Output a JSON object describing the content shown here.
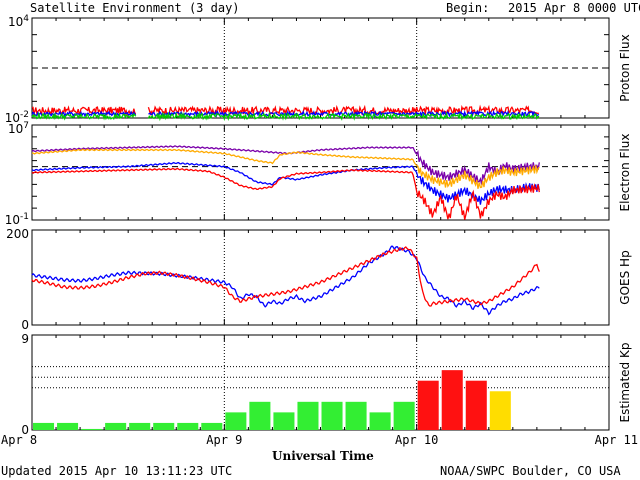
{
  "header": {
    "title": "Satellite Environment (3 day)",
    "begin_label": "Begin:",
    "begin_value": "2015 Apr 8 0000 UTC"
  },
  "footer": {
    "updated": "Updated 2015 Apr 10 13:11:23 UTC",
    "credit": "NOAA/SWPC Boulder, CO USA",
    "xlabel": "Universal Time"
  },
  "colors": {
    "red": "#ff0000",
    "blue": "#0000ff",
    "green": "#00cc00",
    "purple": "#7a00aa",
    "orange": "#ffaa00",
    "kp_green": "#33ee33",
    "kp_red": "#ff1111",
    "kp_yellow": "#ffdd00"
  },
  "chart_data": [
    {
      "type": "line",
      "ylabel": "Proton Flux",
      "ytick_labels": [
        "10^4",
        "10^-2"
      ],
      "scale": "log",
      "ylim": [
        -2,
        4
      ],
      "threshold": 1,
      "gap_hours": [
        13.0,
        14.5
      ],
      "series": [
        {
          "color": "red",
          "mean_log": -1.55,
          "jitter": 0.22
        },
        {
          "color": "blue",
          "mean_log": -1.75,
          "jitter": 0.12
        },
        {
          "color": "green",
          "mean_log": -1.9,
          "jitter": 0.15
        }
      ]
    },
    {
      "type": "line",
      "ylabel": "Electron Flux",
      "ytick_labels": [
        "10^7",
        "10^-1"
      ],
      "scale": "log",
      "ylim": [
        -1,
        7
      ],
      "threshold": 3.5,
      "series": [
        {
          "color": "purple",
          "points": [
            [
              0,
              4.8
            ],
            [
              6,
              5.0
            ],
            [
              12,
              5.1
            ],
            [
              18,
              5.2
            ],
            [
              24,
              5.0
            ],
            [
              28,
              4.8
            ],
            [
              32,
              4.6
            ],
            [
              36,
              4.9
            ],
            [
              42,
              5.1
            ],
            [
              47.5,
              5.1
            ],
            [
              48.5,
              4.0
            ],
            [
              50,
              3.0
            ],
            [
              52,
              2.6
            ],
            [
              54,
              3.2
            ],
            [
              56,
              2.2
            ],
            [
              57,
              3.5
            ],
            [
              58,
              3.0
            ],
            [
              59,
              3.6
            ],
            [
              60,
              3.3
            ],
            [
              62,
              3.5
            ],
            [
              63.3,
              3.5
            ]
          ]
        },
        {
          "color": "orange",
          "points": [
            [
              0,
              4.6
            ],
            [
              6,
              4.9
            ],
            [
              12,
              4.9
            ],
            [
              18,
              4.9
            ],
            [
              24,
              4.6
            ],
            [
              26,
              4.3
            ],
            [
              28,
              4.0
            ],
            [
              30,
              3.8
            ],
            [
              31,
              4.5
            ],
            [
              33,
              4.7
            ],
            [
              36,
              4.5
            ],
            [
              40,
              4.3
            ],
            [
              44,
              4.2
            ],
            [
              47.5,
              4.1
            ],
            [
              48.5,
              3.0
            ],
            [
              50,
              2.4
            ],
            [
              52,
              2.0
            ],
            [
              54,
              2.8
            ],
            [
              56,
              1.8
            ],
            [
              57,
              2.6
            ],
            [
              58,
              3.0
            ],
            [
              59,
              3.2
            ],
            [
              60,
              3.0
            ],
            [
              62,
              3.2
            ],
            [
              63.3,
              3.3
            ]
          ]
        },
        {
          "color": "blue",
          "points": [
            [
              0,
              3.2
            ],
            [
              6,
              3.4
            ],
            [
              12,
              3.5
            ],
            [
              18,
              3.8
            ],
            [
              24,
              3.5
            ],
            [
              26,
              3.0
            ],
            [
              28,
              2.2
            ],
            [
              30,
              2.0
            ],
            [
              31,
              2.6
            ],
            [
              33,
              2.4
            ],
            [
              36,
              2.8
            ],
            [
              40,
              3.2
            ],
            [
              44,
              3.4
            ],
            [
              47.5,
              3.5
            ],
            [
              48.5,
              2.4
            ],
            [
              50,
              1.5
            ],
            [
              52,
              0.8
            ],
            [
              54,
              1.5
            ],
            [
              56,
              0.6
            ],
            [
              57,
              1.2
            ],
            [
              58,
              1.6
            ],
            [
              60,
              1.5
            ],
            [
              62,
              1.8
            ],
            [
              63.3,
              1.7
            ]
          ]
        },
        {
          "color": "red",
          "points": [
            [
              0,
              3.0
            ],
            [
              6,
              3.1
            ],
            [
              12,
              3.2
            ],
            [
              18,
              3.3
            ],
            [
              22,
              3.1
            ],
            [
              24,
              2.6
            ],
            [
              26,
              1.9
            ],
            [
              28,
              1.6
            ],
            [
              30,
              1.8
            ],
            [
              31,
              2.5
            ],
            [
              33,
              2.9
            ],
            [
              36,
              3.0
            ],
            [
              40,
              3.2
            ],
            [
              44,
              3.1
            ],
            [
              47.5,
              3.0
            ],
            [
              48,
              1.4
            ],
            [
              49,
              0.6
            ],
            [
              50,
              -0.6
            ],
            [
              51,
              0.9
            ],
            [
              52,
              -0.9
            ],
            [
              53,
              1.1
            ],
            [
              54,
              -0.8
            ],
            [
              55,
              1.3
            ],
            [
              56,
              -0.7
            ],
            [
              57,
              0.6
            ],
            [
              58,
              1.2
            ],
            [
              59,
              0.9
            ],
            [
              60,
              1.5
            ],
            [
              62,
              1.6
            ],
            [
              63.3,
              1.7
            ]
          ]
        }
      ]
    },
    {
      "type": "line",
      "ylabel": "GOES Hp",
      "ytick_labels": [
        "200",
        "0"
      ],
      "ylim": [
        0,
        200
      ],
      "series": [
        {
          "color": "blue",
          "points": [
            [
              0,
              105
            ],
            [
              2,
              100
            ],
            [
              4,
              95
            ],
            [
              6,
              93
            ],
            [
              8,
              98
            ],
            [
              10,
              105
            ],
            [
              12,
              110
            ],
            [
              16,
              108
            ],
            [
              20,
              100
            ],
            [
              22,
              95
            ],
            [
              24,
              90
            ],
            [
              25,
              80
            ],
            [
              26,
              55
            ],
            [
              27,
              65
            ],
            [
              28,
              60
            ],
            [
              29,
              40
            ],
            [
              30,
              50
            ],
            [
              31,
              45
            ],
            [
              32,
              55
            ],
            [
              33,
              60
            ],
            [
              34,
              50
            ],
            [
              36,
              60
            ],
            [
              38,
              80
            ],
            [
              40,
              100
            ],
            [
              42,
              130
            ],
            [
              44,
              150
            ],
            [
              45,
              165
            ],
            [
              46,
              160
            ],
            [
              47,
              155
            ],
            [
              48,
              140
            ],
            [
              49,
              100
            ],
            [
              50,
              80
            ],
            [
              51,
              60
            ],
            [
              52,
              55
            ],
            [
              53,
              40
            ],
            [
              54,
              50
            ],
            [
              55,
              35
            ],
            [
              56,
              45
            ],
            [
              57,
              25
            ],
            [
              58,
              40
            ],
            [
              59,
              50
            ],
            [
              60,
              55
            ],
            [
              61,
              65
            ],
            [
              62,
              70
            ],
            [
              63.3,
              80
            ]
          ]
        },
        {
          "color": "red",
          "points": [
            [
              0,
              95
            ],
            [
              2,
              88
            ],
            [
              4,
              80
            ],
            [
              6,
              78
            ],
            [
              8,
              82
            ],
            [
              10,
              90
            ],
            [
              12,
              100
            ],
            [
              14,
              108
            ],
            [
              16,
              110
            ],
            [
              18,
              105
            ],
            [
              20,
              98
            ],
            [
              22,
              90
            ],
            [
              24,
              80
            ],
            [
              25,
              60
            ],
            [
              26,
              50
            ],
            [
              27,
              55
            ],
            [
              28,
              60
            ],
            [
              30,
              65
            ],
            [
              32,
              70
            ],
            [
              34,
              80
            ],
            [
              36,
              90
            ],
            [
              38,
              105
            ],
            [
              40,
              120
            ],
            [
              42,
              135
            ],
            [
              44,
              150
            ],
            [
              46,
              160
            ],
            [
              47,
              162
            ],
            [
              48,
              140
            ],
            [
              48.7,
              70
            ],
            [
              49.5,
              40
            ],
            [
              50,
              45
            ],
            [
              52,
              50
            ],
            [
              54,
              55
            ],
            [
              56,
              45
            ],
            [
              57,
              50
            ],
            [
              58,
              60
            ],
            [
              59,
              70
            ],
            [
              60,
              80
            ],
            [
              61,
              95
            ],
            [
              62,
              110
            ],
            [
              62.6,
              120
            ],
            [
              63,
              130
            ],
            [
              63.3,
              110
            ]
          ]
        }
      ]
    },
    {
      "type": "bar",
      "ylabel": "Estimated Kp",
      "ytick_labels": [
        "9",
        "0"
      ],
      "ylim": [
        0,
        9
      ],
      "gridlines": [
        4,
        5,
        6
      ],
      "bar_width_hours": 3,
      "bars": [
        {
          "start": 0,
          "value": 0.67,
          "color": "kp_green"
        },
        {
          "start": 3,
          "value": 0.67,
          "color": "kp_green"
        },
        {
          "start": 6,
          "value": 0.1,
          "color": "kp_green"
        },
        {
          "start": 9,
          "value": 0.67,
          "color": "kp_green"
        },
        {
          "start": 12,
          "value": 0.67,
          "color": "kp_green"
        },
        {
          "start": 15,
          "value": 0.67,
          "color": "kp_green"
        },
        {
          "start": 18,
          "value": 0.67,
          "color": "kp_green"
        },
        {
          "start": 21,
          "value": 0.67,
          "color": "kp_green"
        },
        {
          "start": 24,
          "value": 1.67,
          "color": "kp_green"
        },
        {
          "start": 27,
          "value": 2.67,
          "color": "kp_green"
        },
        {
          "start": 30,
          "value": 1.67,
          "color": "kp_green"
        },
        {
          "start": 33,
          "value": 2.67,
          "color": "kp_green"
        },
        {
          "start": 36,
          "value": 2.67,
          "color": "kp_green"
        },
        {
          "start": 39,
          "value": 2.67,
          "color": "kp_green"
        },
        {
          "start": 42,
          "value": 1.67,
          "color": "kp_green"
        },
        {
          "start": 45,
          "value": 2.67,
          "color": "kp_green"
        },
        {
          "start": 48,
          "value": 4.67,
          "color": "kp_red"
        },
        {
          "start": 51,
          "value": 5.67,
          "color": "kp_red"
        },
        {
          "start": 54,
          "value": 4.67,
          "color": "kp_red"
        },
        {
          "start": 57,
          "value": 3.67,
          "color": "kp_yellow"
        }
      ]
    }
  ],
  "xaxis": {
    "range_hours": [
      0,
      72
    ],
    "day_lines": [
      24,
      48
    ],
    "ticks": [
      {
        "hour": 0,
        "label": "Apr 8"
      },
      {
        "hour": 24,
        "label": "Apr 9"
      },
      {
        "hour": 48,
        "label": "Apr 10"
      },
      {
        "hour": 72,
        "label": "Apr 11"
      }
    ]
  }
}
